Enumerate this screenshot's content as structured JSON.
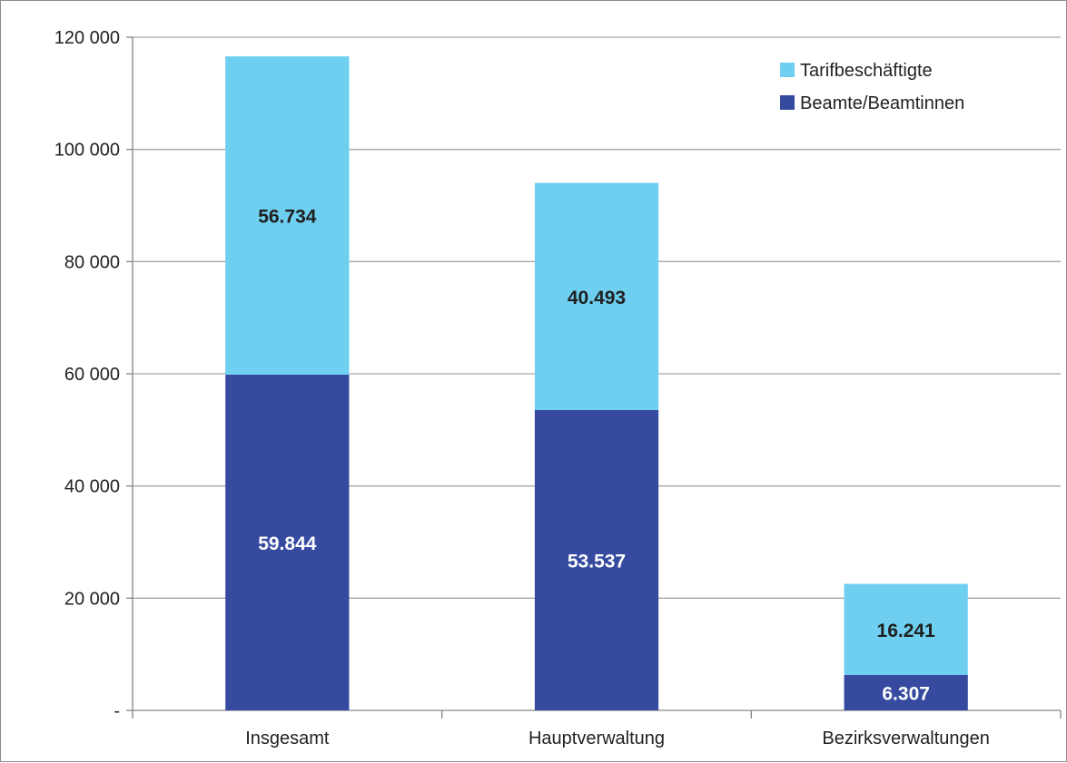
{
  "chart_data": {
    "type": "bar",
    "stacked": true,
    "categories": [
      "Insgesamt",
      "Hauptverwaltung",
      "Bezirksverwaltungen"
    ],
    "series": [
      {
        "name": "Beamte/Beamtinnen",
        "values": [
          59844,
          53537,
          6307
        ],
        "labels": [
          "59.844",
          "53.537",
          "6.307"
        ],
        "color": "#364BA0"
      },
      {
        "name": "Tarifbeschäftigte",
        "values": [
          56734,
          40493,
          16241
        ],
        "labels": [
          "56.734",
          "40.493",
          "16.241"
        ],
        "color": "#6ECFF0"
      }
    ],
    "yticks": [
      {
        "value": 0,
        "label": "-"
      },
      {
        "value": 20000,
        "label": "20 000"
      },
      {
        "value": 40000,
        "label": "40 000"
      },
      {
        "value": 60000,
        "label": "60 000"
      },
      {
        "value": 80000,
        "label": "80 000"
      },
      {
        "value": 100000,
        "label": "100 000"
      },
      {
        "value": 120000,
        "label": "120 000"
      }
    ],
    "ylim": [
      0,
      120000
    ],
    "grid": true,
    "gridline_color": "#A6A6A6",
    "legend": {
      "placement": "top-right",
      "order": [
        "Tarifbeschäftigte",
        "Beamte/Beamtinnen"
      ]
    },
    "data_label_colors": {
      "Beamte/Beamtinnen": "#FFFFFF",
      "Tarifbeschäftigte": "#1F1F1F"
    }
  }
}
